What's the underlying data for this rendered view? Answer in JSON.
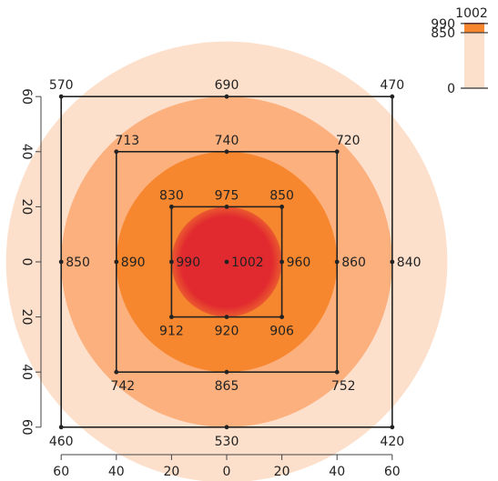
{
  "chart_data": {
    "type": "heatmap",
    "title": "",
    "xlabel": "",
    "ylabel": "",
    "colors": {
      "outer": "#fde0cc",
      "middle": "#fbb07e",
      "inner": "#f7872e",
      "core": "#e12a2f",
      "core_edge": "#ea5a2f",
      "line": "#222222"
    },
    "rings": [
      {
        "name": "outer-ring",
        "radius": 80,
        "color": "#fde0cc"
      },
      {
        "name": "middle-ring",
        "radius": 60,
        "color": "#fbb07e"
      },
      {
        "name": "inner-ring",
        "radius": 40,
        "color": "#f7872e"
      },
      {
        "name": "core",
        "radius": 20,
        "color": "#e12a2f"
      }
    ],
    "squares": [
      {
        "half": 60
      },
      {
        "half": 40
      },
      {
        "half": 20
      }
    ],
    "points": [
      {
        "x": -60,
        "y": 60,
        "value": "570",
        "pos": "above"
      },
      {
        "x": 0,
        "y": 60,
        "value": "690",
        "pos": "above"
      },
      {
        "x": 60,
        "y": 60,
        "value": "470",
        "pos": "above"
      },
      {
        "x": -40,
        "y": 40,
        "value": "713",
        "pos": "above-right"
      },
      {
        "x": 0,
        "y": 40,
        "value": "740",
        "pos": "above"
      },
      {
        "x": 40,
        "y": 40,
        "value": "720",
        "pos": "above-right"
      },
      {
        "x": -20,
        "y": 20,
        "value": "830",
        "pos": "above"
      },
      {
        "x": 0,
        "y": 20,
        "value": "975",
        "pos": "above"
      },
      {
        "x": 20,
        "y": 20,
        "value": "850",
        "pos": "above"
      },
      {
        "x": -60,
        "y": 0,
        "value": "850",
        "pos": "right"
      },
      {
        "x": -40,
        "y": 0,
        "value": "890",
        "pos": "right"
      },
      {
        "x": -20,
        "y": 0,
        "value": "990",
        "pos": "right"
      },
      {
        "x": 0,
        "y": 0,
        "value": "1002",
        "pos": "right"
      },
      {
        "x": 20,
        "y": 0,
        "value": "960",
        "pos": "right"
      },
      {
        "x": 40,
        "y": 0,
        "value": "860",
        "pos": "right"
      },
      {
        "x": 60,
        "y": 0,
        "value": "840",
        "pos": "right"
      },
      {
        "x": -20,
        "y": -20,
        "value": "912",
        "pos": "below"
      },
      {
        "x": 0,
        "y": -20,
        "value": "920",
        "pos": "below"
      },
      {
        "x": 20,
        "y": -20,
        "value": "906",
        "pos": "below"
      },
      {
        "x": -40,
        "y": -40,
        "value": "742",
        "pos": "below-right"
      },
      {
        "x": 0,
        "y": -40,
        "value": "865",
        "pos": "below"
      },
      {
        "x": 40,
        "y": -40,
        "value": "752",
        "pos": "below-right"
      },
      {
        "x": -60,
        "y": -60,
        "value": "460",
        "pos": "below"
      },
      {
        "x": 0,
        "y": -60,
        "value": "530",
        "pos": "below"
      },
      {
        "x": 60,
        "y": -60,
        "value": "420",
        "pos": "below"
      }
    ],
    "x_ticks": {
      "values": [
        -60,
        -40,
        -20,
        0,
        20,
        40,
        60
      ],
      "labels": [
        "60",
        "40",
        "20",
        "0",
        "20",
        "40",
        "60"
      ]
    },
    "y_ticks": {
      "values": [
        60,
        40,
        20,
        0,
        -20,
        -40,
        -60
      ],
      "labels": [
        "60",
        "40",
        "20",
        "0",
        "20",
        "40",
        "60"
      ]
    },
    "xlim": [
      -60,
      60
    ],
    "ylim": [
      -60,
      60
    ],
    "grid": false,
    "legend": {
      "placement": "top-right",
      "ticks": [
        {
          "value": 0,
          "label": "0"
        },
        {
          "value": 850,
          "label": "850"
        },
        {
          "value": 990,
          "label": "990"
        }
      ],
      "max_label": "1002",
      "range": [
        0,
        1002
      ]
    }
  }
}
